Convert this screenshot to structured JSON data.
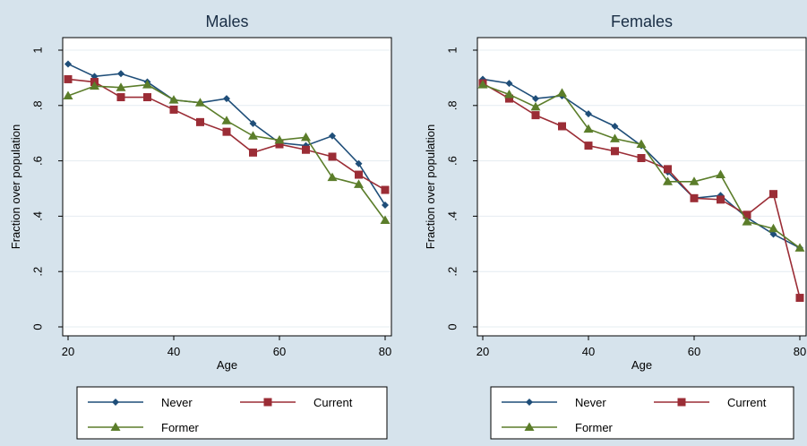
{
  "colors": {
    "background": "#d6e3ec",
    "plot_area": "#ffffff",
    "grid": "#e4ecf1",
    "never": "#1f4e79",
    "current": "#9b2d36",
    "former": "#5b7d2a"
  },
  "chart_data": [
    {
      "type": "line",
      "title": "Males",
      "xlabel": "Age",
      "ylabel": "Fraction over population",
      "xlim": [
        20,
        80
      ],
      "ylim": [
        0,
        1
      ],
      "xticks": [
        "20",
        "40",
        "60",
        "80"
      ],
      "yticks": [
        "0",
        ".2",
        ".4",
        ".6",
        ".8",
        "1"
      ],
      "x": [
        20,
        25,
        30,
        35,
        40,
        45,
        50,
        55,
        60,
        65,
        70,
        75,
        80
      ],
      "grid": true,
      "legend_position": "bottom",
      "series": [
        {
          "name": "Never",
          "marker": "diamond",
          "values": [
            0.95,
            0.905,
            0.915,
            0.885,
            0.82,
            0.81,
            0.825,
            0.735,
            0.665,
            0.655,
            0.69,
            0.59,
            0.44
          ]
        },
        {
          "name": "Current",
          "marker": "square",
          "values": [
            0.895,
            0.885,
            0.83,
            0.83,
            0.785,
            0.74,
            0.705,
            0.63,
            0.66,
            0.64,
            0.615,
            0.55,
            0.495
          ]
        },
        {
          "name": "Former",
          "marker": "triangle",
          "values": [
            0.835,
            0.87,
            0.865,
            0.875,
            0.82,
            0.81,
            0.745,
            0.69,
            0.675,
            0.685,
            0.54,
            0.515,
            0.385
          ]
        }
      ]
    },
    {
      "type": "line",
      "title": "Females",
      "xlabel": "Age",
      "ylabel": "Fraction over population",
      "xlim": [
        20,
        80
      ],
      "ylim": [
        0,
        1
      ],
      "xticks": [
        "20",
        "40",
        "60",
        "80"
      ],
      "yticks": [
        "0",
        ".2",
        ".4",
        ".6",
        ".8",
        "1"
      ],
      "x": [
        20,
        25,
        30,
        35,
        40,
        45,
        50,
        55,
        60,
        65,
        70,
        75,
        80
      ],
      "grid": true,
      "legend_position": "bottom",
      "series": [
        {
          "name": "Never",
          "marker": "diamond",
          "values": [
            0.895,
            0.88,
            0.825,
            0.835,
            0.77,
            0.725,
            0.655,
            0.56,
            0.465,
            0.475,
            0.395,
            0.335,
            0.285
          ]
        },
        {
          "name": "Current",
          "marker": "square",
          "values": [
            0.88,
            0.825,
            0.765,
            0.725,
            0.655,
            0.635,
            0.61,
            0.57,
            0.465,
            0.46,
            0.405,
            0.48,
            0.105
          ]
        },
        {
          "name": "Former",
          "marker": "triangle",
          "values": [
            0.875,
            0.84,
            0.795,
            0.845,
            0.715,
            0.68,
            0.66,
            0.525,
            0.525,
            0.55,
            0.38,
            0.355,
            0.285
          ]
        }
      ]
    }
  ]
}
